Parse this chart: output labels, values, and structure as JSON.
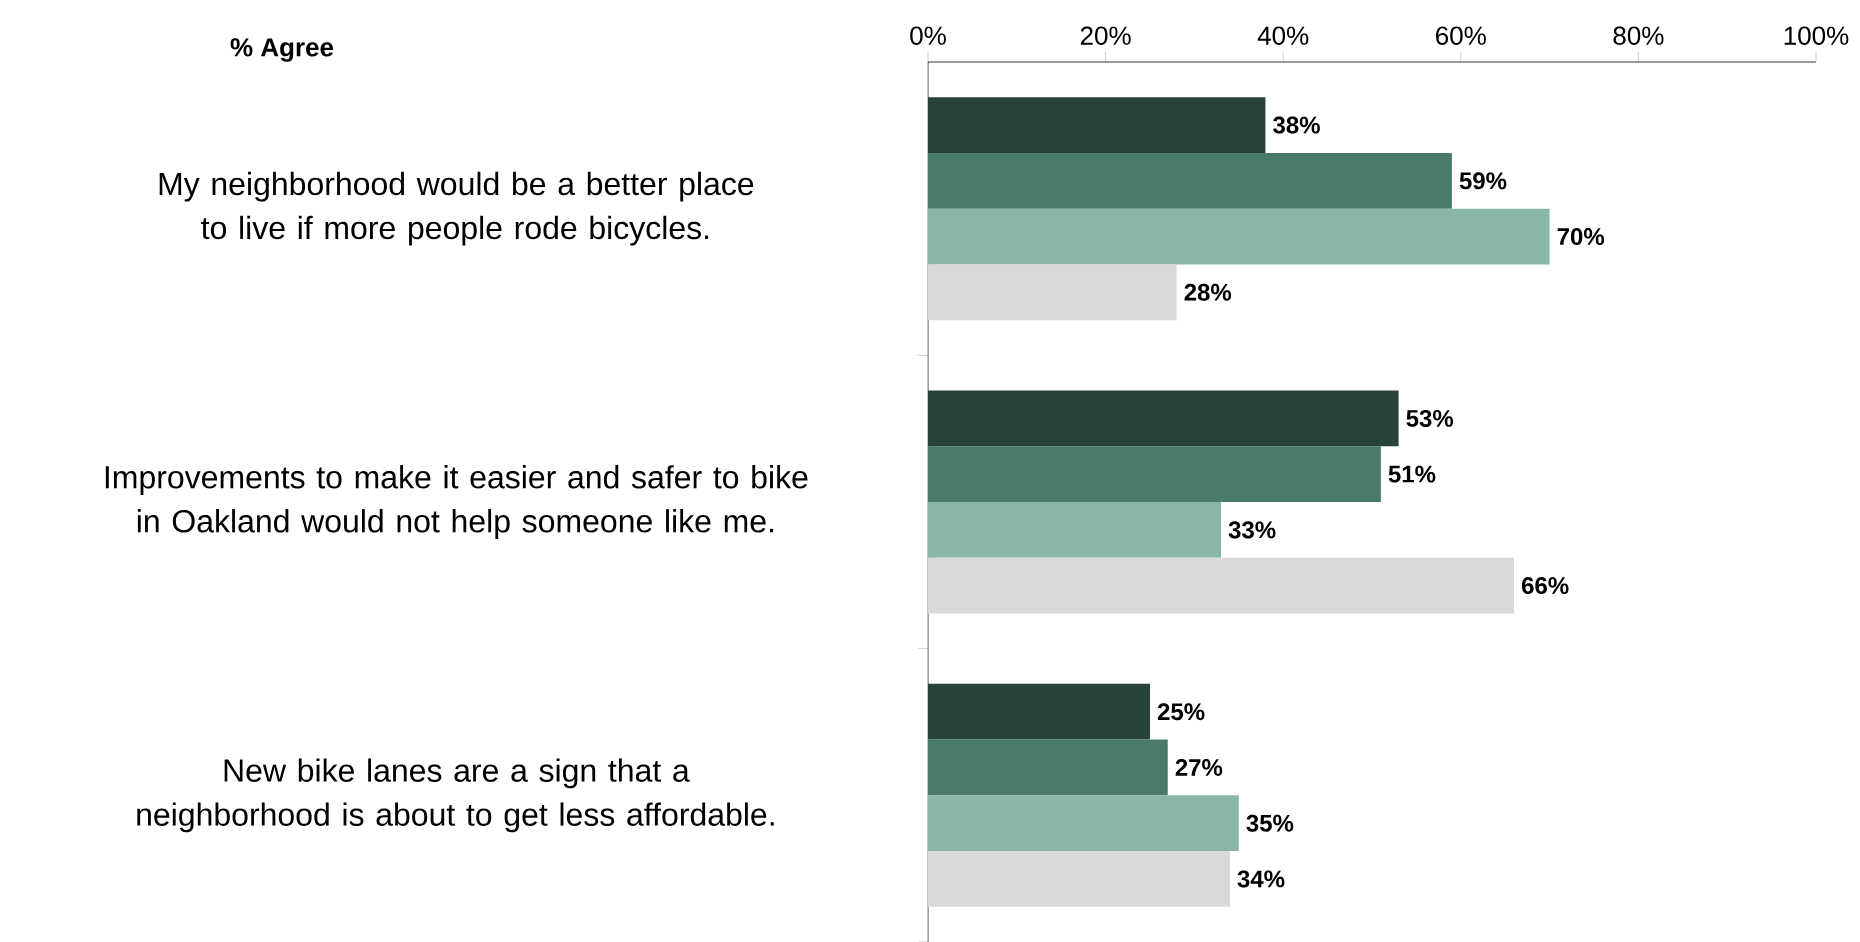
{
  "chart_data": {
    "type": "bar",
    "orientation": "horizontal",
    "title": "% Agree",
    "categories": [
      "My neighborhood would be a better place to live if more people rode bicycles.",
      "Improvements to make it easier and safer to bike in Oakland would not help someone like me.",
      "New bike lanes are a sign that a neighborhood is about to get less affordable."
    ],
    "series": [
      {
        "color": "#284337",
        "values": [
          38,
          53,
          25
        ],
        "value_labels": [
          "38%",
          "53%",
          "25%"
        ]
      },
      {
        "color": "#4a7a69",
        "values": [
          59,
          51,
          27
        ],
        "value_labels": [
          "59%",
          "51%",
          "27%"
        ]
      },
      {
        "color": "#88b7a5",
        "values": [
          70,
          33,
          35
        ],
        "value_labels": [
          "70%",
          "33%",
          "35%"
        ]
      },
      {
        "color": "#d9d9d9",
        "values": [
          28,
          66,
          34
        ],
        "value_labels": [
          "28%",
          "66%",
          "34%"
        ]
      }
    ],
    "xlim": [
      0,
      100
    ],
    "xticks": [
      {
        "value": 0,
        "label": "0%"
      },
      {
        "value": 20,
        "label": "20%"
      },
      {
        "value": 40,
        "label": "40%"
      },
      {
        "value": 60,
        "label": "60%"
      },
      {
        "value": 80,
        "label": "80%"
      },
      {
        "value": 100,
        "label": "100%"
      }
    ],
    "grid": false
  }
}
